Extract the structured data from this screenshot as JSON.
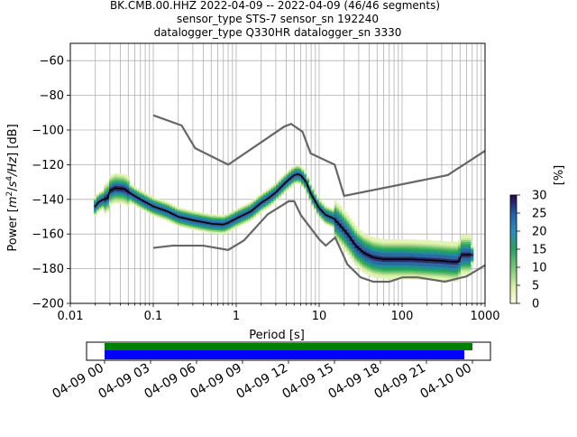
{
  "chart_data": {
    "type": "heatmap",
    "title_lines": [
      "BK.CMB.00.HHZ   2022-04-09 -- 2022-04-09  (46/46 segments)",
      "sensor_type STS-7 sensor_sn 192240",
      "datalogger_type Q330HR datalogger_sn 3330"
    ],
    "xlabel": "Period [s]",
    "ylabel_parts": [
      "Power [",
      "m",
      "2",
      "/",
      "s",
      "4",
      "/Hz",
      "] [dB]"
    ],
    "x_scale": "log",
    "xlim": [
      0.01,
      1000
    ],
    "ylim": [
      -200,
      -50
    ],
    "x_ticks": [
      {
        "v": 0.01,
        "label": "0.01"
      },
      {
        "v": 0.1,
        "label": "0.1"
      },
      {
        "v": 1,
        "label": "1"
      },
      {
        "v": 10,
        "label": "10"
      },
      {
        "v": 100,
        "label": "100"
      },
      {
        "v": 1000,
        "label": "1000"
      }
    ],
    "y_ticks": [
      {
        "v": -60,
        "label": "−60"
      },
      {
        "v": -80,
        "label": "−80"
      },
      {
        "v": -100,
        "label": "−100"
      },
      {
        "v": -120,
        "label": "−120"
      },
      {
        "v": -140,
        "label": "−140"
      },
      {
        "v": -160,
        "label": "−160"
      },
      {
        "v": -180,
        "label": "−180"
      },
      {
        "v": -200,
        "label": "−200"
      }
    ],
    "grid": true,
    "nhnm": [
      [
        0.1,
        -91.5
      ],
      [
        0.22,
        -97.4
      ],
      [
        0.32,
        -110.5
      ],
      [
        0.8,
        -120
      ],
      [
        3.8,
        -98
      ],
      [
        4.6,
        -96.5
      ],
      [
        6.3,
        -101
      ],
      [
        7.9,
        -113.5
      ],
      [
        15.4,
        -120
      ],
      [
        20,
        -138
      ],
      [
        354.8,
        -126
      ],
      [
        1000,
        -112
      ]
    ],
    "nlnm": [
      [
        0.1,
        -168
      ],
      [
        0.17,
        -166.7
      ],
      [
        0.4,
        -166.7
      ],
      [
        0.8,
        -169.2
      ],
      [
        1.24,
        -163.7
      ],
      [
        2.4,
        -148.6
      ],
      [
        4.3,
        -141.1
      ],
      [
        5,
        -141.1
      ],
      [
        6,
        -149
      ],
      [
        10,
        -163
      ],
      [
        12,
        -166.7
      ],
      [
        15.6,
        -162
      ],
      [
        21.9,
        -177.5
      ],
      [
        31.6,
        -185
      ],
      [
        45,
        -187.5
      ],
      [
        70,
        -187.5
      ],
      [
        101,
        -185
      ],
      [
        154,
        -185
      ],
      [
        328,
        -187.5
      ],
      [
        600,
        -184.4
      ],
      [
        1000,
        -178
      ]
    ],
    "median": [
      [
        0.02,
        -144
      ],
      [
        0.022,
        -141.5
      ],
      [
        0.025,
        -140
      ],
      [
        0.028,
        -139.5
      ],
      [
        0.03,
        -135
      ],
      [
        0.035,
        -133.5
      ],
      [
        0.045,
        -134
      ],
      [
        0.055,
        -137
      ],
      [
        0.07,
        -140
      ],
      [
        0.1,
        -144
      ],
      [
        0.15,
        -147
      ],
      [
        0.2,
        -150
      ],
      [
        0.3,
        -152
      ],
      [
        0.5,
        -154
      ],
      [
        0.7,
        -154.5
      ],
      [
        0.8,
        -153.5
      ],
      [
        1,
        -151
      ],
      [
        1.5,
        -147
      ],
      [
        2,
        -142
      ],
      [
        2.5,
        -139
      ],
      [
        3,
        -136
      ],
      [
        4,
        -130
      ],
      [
        5,
        -126
      ],
      [
        5.5,
        -125.5
      ],
      [
        6,
        -126
      ],
      [
        7,
        -130
      ],
      [
        8,
        -137
      ],
      [
        10,
        -145
      ],
      [
        12,
        -149
      ],
      [
        15,
        -151
      ],
      [
        18,
        -155
      ],
      [
        22,
        -160
      ],
      [
        28,
        -167
      ],
      [
        35,
        -171
      ],
      [
        45,
        -173.5
      ],
      [
        60,
        -174.5
      ],
      [
        80,
        -174.5
      ],
      [
        120,
        -174.5
      ],
      [
        200,
        -175
      ],
      [
        300,
        -175.5
      ],
      [
        400,
        -176
      ],
      [
        480,
        -176
      ],
      [
        520,
        -172
      ],
      [
        700,
        -172
      ]
    ],
    "colorbar": {
      "label": "[%]",
      "min": 0,
      "max": 30,
      "ticks": [
        "0",
        "5",
        "10",
        "15",
        "20",
        "25",
        "30"
      ]
    },
    "coverage": {
      "labels": [
        "04-09 00",
        "04-09 03",
        "04-09 06",
        "04-09 09",
        "04-09 12",
        "04-09 15",
        "04-09 18",
        "04-09 21",
        "04-10 00"
      ],
      "data_color": "#008000",
      "psd_color": "#0000ff"
    },
    "colors": {
      "nm": "#666666",
      "median": "#000000"
    }
  }
}
